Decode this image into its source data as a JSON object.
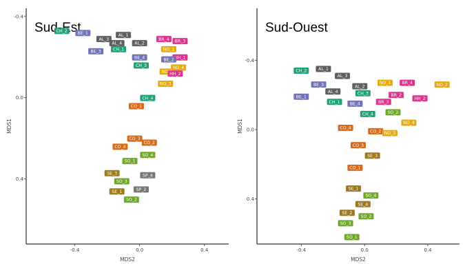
{
  "palette": {
    "AL": "#5f5f5f",
    "BE": "#7373b8",
    "BR": "#e0338e",
    "CH": "#21a17a",
    "CO": "#d96a1a",
    "HH": "#e0338e",
    "NO": "#e5a912",
    "SE": "#9e7a1e",
    "SO": "#6fa82b"
  },
  "chart_data": [
    {
      "type": "scatter",
      "title": "Sud-Est",
      "xlabel": "MDS2",
      "ylabel": "MDS1",
      "xlim": [
        -0.7,
        0.55
      ],
      "ylim": [
        -0.44,
        0.72
      ],
      "y_inverted": true,
      "xticks": [
        -0.4,
        0.0,
        0.4
      ],
      "xtick_labels": [
        "-0.4",
        "0.0",
        "0.4"
      ],
      "yticks": [
        -0.4,
        0.0,
        0.4
      ],
      "ytick_labels": [
        "-0.4",
        "0.0",
        "0.4"
      ],
      "grid": false,
      "points": [
        {
          "label": "CH_2",
          "x": -0.48,
          "y": -0.32
        },
        {
          "label": "BE_1",
          "x": -0.35,
          "y": -0.31
        },
        {
          "label": "AL_1",
          "x": -0.1,
          "y": -0.3
        },
        {
          "label": "AL_3",
          "x": -0.22,
          "y": -0.28
        },
        {
          "label": "AL_4",
          "x": -0.14,
          "y": -0.26
        },
        {
          "label": "AL_2",
          "x": 0.0,
          "y": -0.26
        },
        {
          "label": "BE_3",
          "x": -0.27,
          "y": -0.22
        },
        {
          "label": "CH_1",
          "x": -0.13,
          "y": -0.23
        },
        {
          "label": "BR_4",
          "x": 0.15,
          "y": -0.28
        },
        {
          "label": "BR_3",
          "x": 0.25,
          "y": -0.27
        },
        {
          "label": "NO_1",
          "x": 0.18,
          "y": -0.23
        },
        {
          "label": "HH_1",
          "x": 0.25,
          "y": -0.19
        },
        {
          "label": "BE_2",
          "x": 0.18,
          "y": -0.18
        },
        {
          "label": "CH_3",
          "x": 0.01,
          "y": -0.15
        },
        {
          "label": "BE_4",
          "x": 0.0,
          "y": -0.19
        },
        {
          "label": "NO_4",
          "x": 0.24,
          "y": -0.14
        },
        {
          "label": "NO_2",
          "x": 0.17,
          "y": -0.12
        },
        {
          "label": "HH_2",
          "x": 0.22,
          "y": -0.11
        },
        {
          "label": "NO_3",
          "x": 0.16,
          "y": -0.06
        },
        {
          "label": "CH_4",
          "x": 0.05,
          "y": 0.01
        },
        {
          "label": "CO_1",
          "x": -0.02,
          "y": 0.05
        },
        {
          "label": "CO_3",
          "x": -0.03,
          "y": 0.21
        },
        {
          "label": "CO_4",
          "x": -0.12,
          "y": 0.25
        },
        {
          "label": "CO_2",
          "x": 0.06,
          "y": 0.23
        },
        {
          "label": "SO_4",
          "x": 0.05,
          "y": 0.29
        },
        {
          "label": "SO_1",
          "x": -0.06,
          "y": 0.32
        },
        {
          "label": "SE_3",
          "x": -0.17,
          "y": 0.38
        },
        {
          "label": "SP_4",
          "x": 0.05,
          "y": 0.39
        },
        {
          "label": "SO_3",
          "x": -0.11,
          "y": 0.42
        },
        {
          "label": "SE_1",
          "x": -0.14,
          "y": 0.47
        },
        {
          "label": "SP_2",
          "x": 0.01,
          "y": 0.46
        },
        {
          "label": "SO_2",
          "x": -0.05,
          "y": 0.51
        }
      ]
    },
    {
      "type": "scatter",
      "title": "Sud-Ouest",
      "xlabel": "MDS2",
      "ylabel": "MDS1",
      "xlim": [
        -0.68,
        0.6
      ],
      "ylim": [
        -0.7,
        0.66
      ],
      "y_inverted": true,
      "xticks": [
        -0.4,
        0.0,
        0.4
      ],
      "xtick_labels": [
        "-0.4",
        "0.0",
        "0.4"
      ],
      "yticks": [
        -0.4,
        0.0,
        0.4
      ],
      "ytick_labels": [
        "-0.4",
        "0.0",
        "0.4"
      ],
      "grid": false,
      "points": [
        {
          "label": "CH_2",
          "x": -0.4,
          "y": -0.33
        },
        {
          "label": "AL_1",
          "x": -0.26,
          "y": -0.34
        },
        {
          "label": "AL_3",
          "x": -0.14,
          "y": -0.3
        },
        {
          "label": "BE_3",
          "x": -0.29,
          "y": -0.25
        },
        {
          "label": "AL_2",
          "x": -0.03,
          "y": -0.24
        },
        {
          "label": "AL_4",
          "x": -0.2,
          "y": -0.21
        },
        {
          "label": "CH_3",
          "x": -0.01,
          "y": -0.2
        },
        {
          "label": "BE_1",
          "x": -0.4,
          "y": -0.18
        },
        {
          "label": "CH_1",
          "x": -0.19,
          "y": -0.15
        },
        {
          "label": "BE_4",
          "x": -0.06,
          "y": -0.14
        },
        {
          "label": "NO_1",
          "x": 0.13,
          "y": -0.26
        },
        {
          "label": "BR_4",
          "x": 0.27,
          "y": -0.26
        },
        {
          "label": "BR_2",
          "x": 0.2,
          "y": -0.19
        },
        {
          "label": "BR_3",
          "x": 0.12,
          "y": -0.15
        },
        {
          "label": "HH_2",
          "x": 0.35,
          "y": -0.17
        },
        {
          "label": "NO_2",
          "x": 0.49,
          "y": -0.25
        },
        {
          "label": "CH_4",
          "x": 0.02,
          "y": -0.08
        },
        {
          "label": "SO_2",
          "x": 0.18,
          "y": -0.09
        },
        {
          "label": "NO_4",
          "x": 0.28,
          "y": -0.03
        },
        {
          "label": "CO_4",
          "x": -0.12,
          "y": 0.0
        },
        {
          "label": "CO_2",
          "x": 0.07,
          "y": 0.02
        },
        {
          "label": "NO_3",
          "x": 0.16,
          "y": 0.03
        },
        {
          "label": "CO_3",
          "x": -0.04,
          "y": 0.1
        },
        {
          "label": "SE_3",
          "x": 0.05,
          "y": 0.16
        },
        {
          "label": "CO_1",
          "x": -0.06,
          "y": 0.23
        },
        {
          "label": "SE_1",
          "x": -0.07,
          "y": 0.35
        },
        {
          "label": "SO_4",
          "x": 0.04,
          "y": 0.39
        },
        {
          "label": "SE_4",
          "x": -0.01,
          "y": 0.44
        },
        {
          "label": "SE_2",
          "x": -0.11,
          "y": 0.49
        },
        {
          "label": "SO_2",
          "x": 0.01,
          "y": 0.51
        },
        {
          "label": "SO_3",
          "x": -0.12,
          "y": 0.55
        },
        {
          "label": "SO_1",
          "x": -0.08,
          "y": 0.63
        }
      ]
    }
  ]
}
